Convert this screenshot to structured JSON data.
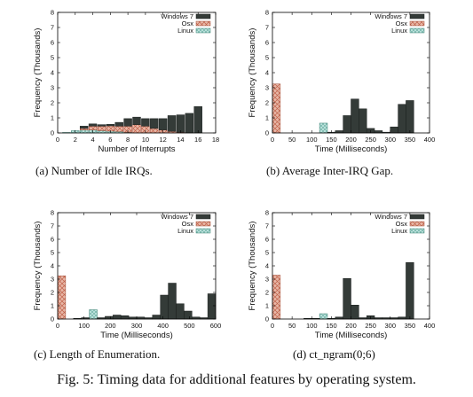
{
  "figure": {
    "caption": "Fig. 5: Timing data for additional features by operating system.",
    "colors": {
      "Windows 7": "#343b38",
      "Osx": "#e8b7a6",
      "Linux": "#b8e0da",
      "Osx_stripe": "#c0614a",
      "Linux_stripe": "#4f9c8d"
    }
  },
  "chart_data": [
    {
      "type": "bar",
      "subcaption": "(a) Number of Idle IRQs.",
      "xlabel": "Number of Interrupts",
      "ylabel": "Frequency (Thousands)",
      "xlim": [
        0,
        18
      ],
      "ylim": [
        0,
        8
      ],
      "xticks": [
        0,
        2,
        4,
        6,
        8,
        10,
        12,
        14,
        16,
        18
      ],
      "yticks": [
        0,
        1,
        2,
        3,
        4,
        5,
        6,
        7,
        8
      ],
      "legend": "top-right",
      "grid": false,
      "bar_width": 1,
      "stacked": true,
      "series": [
        {
          "name": "Linux",
          "x": [
            1,
            2,
            3,
            4,
            5,
            6,
            7,
            8
          ],
          "values": [
            0.03,
            0.15,
            0.2,
            0.2,
            0.15,
            0.12,
            0.1,
            0.05
          ]
        },
        {
          "name": "Osx",
          "x": [
            3,
            4,
            5,
            6,
            7,
            8,
            9,
            10,
            11,
            12,
            13,
            14
          ],
          "values": [
            0.1,
            0.25,
            0.3,
            0.35,
            0.35,
            0.4,
            0.55,
            0.45,
            0.3,
            0.2,
            0.1,
            0.05
          ]
        },
        {
          "name": "Windows 7",
          "x": [
            3,
            4,
            5,
            6,
            7,
            8,
            9,
            10,
            11,
            12,
            13,
            14,
            15,
            16
          ],
          "values": [
            0.15,
            0.15,
            0.1,
            0.1,
            0.25,
            0.5,
            0.5,
            0.5,
            0.65,
            0.75,
            1.05,
            1.15,
            1.3,
            1.75
          ]
        }
      ]
    },
    {
      "type": "bar",
      "subcaption": "(b) Average Inter-IRQ Gap.",
      "xlabel": "Time (Milliseconds)",
      "ylabel": "Frequency (Thousands)",
      "xlim": [
        0,
        400
      ],
      "ylim": [
        0,
        8
      ],
      "xticks": [
        0,
        50,
        100,
        150,
        200,
        250,
        300,
        350,
        400
      ],
      "yticks": [
        0,
        1,
        2,
        3,
        4,
        5,
        6,
        7,
        8
      ],
      "legend": "top-right",
      "grid": false,
      "bar_width": 20,
      "stacked": false,
      "series": [
        {
          "name": "Osx",
          "x": [
            10
          ],
          "values": [
            3.25
          ]
        },
        {
          "name": "Linux",
          "x": [
            130
          ],
          "values": [
            0.65
          ]
        },
        {
          "name": "Windows 7",
          "x": [
            150,
            170,
            190,
            210,
            230,
            250,
            270,
            290,
            310,
            330,
            350
          ],
          "values": [
            0.05,
            0.15,
            1.15,
            2.25,
            1.6,
            0.3,
            0.15,
            0.05,
            0.4,
            1.9,
            2.15
          ]
        }
      ]
    },
    {
      "type": "bar",
      "subcaption": "(c) Length of Enumeration.",
      "xlabel": "Time (Milliseconds)",
      "ylabel": "Frequency (Thousands)",
      "xlim": [
        0,
        600
      ],
      "ylim": [
        0,
        8
      ],
      "xticks": [
        0,
        100,
        200,
        300,
        400,
        500,
        600
      ],
      "yticks": [
        0,
        1,
        2,
        3,
        4,
        5,
        6,
        7,
        8
      ],
      "legend": "top-right",
      "grid": false,
      "bar_width": 30,
      "stacked": false,
      "series": [
        {
          "name": "Osx",
          "x": [
            15
          ],
          "values": [
            3.25
          ]
        },
        {
          "name": "Linux",
          "x": [
            135
          ],
          "values": [
            0.7
          ]
        },
        {
          "name": "Windows 7",
          "x": [
            75,
            105,
            165,
            195,
            225,
            255,
            285,
            315,
            345,
            375,
            405,
            435,
            465,
            495,
            525,
            555,
            585
          ],
          "values": [
            0.05,
            0.1,
            0.1,
            0.2,
            0.3,
            0.25,
            0.15,
            0.15,
            0.1,
            0.3,
            1.8,
            2.7,
            1.15,
            0.6,
            0.15,
            0.1,
            1.9
          ]
        }
      ]
    },
    {
      "type": "bar",
      "subcaption": "(d) ct_ngram(0;6)",
      "xlabel": "Time (Milliseconds)",
      "ylabel": "Frequency (Thousands)",
      "xlim": [
        0,
        400
      ],
      "ylim": [
        0,
        8
      ],
      "xticks": [
        0,
        50,
        100,
        150,
        200,
        250,
        300,
        350,
        400
      ],
      "yticks": [
        0,
        1,
        2,
        3,
        4,
        5,
        6,
        7,
        8
      ],
      "legend": "top-right",
      "grid": false,
      "bar_width": 20,
      "stacked": false,
      "series": [
        {
          "name": "Osx",
          "x": [
            10
          ],
          "values": [
            3.3
          ]
        },
        {
          "name": "Linux",
          "x": [
            130
          ],
          "values": [
            0.4
          ]
        },
        {
          "name": "Windows 7",
          "x": [
            90,
            110,
            150,
            170,
            190,
            210,
            230,
            250,
            270,
            290,
            310,
            330,
            350
          ],
          "values": [
            0.05,
            0.05,
            0.05,
            0.15,
            3.05,
            1.05,
            0.1,
            0.25,
            0.1,
            0.1,
            0.1,
            0.15,
            4.25
          ]
        }
      ]
    }
  ]
}
